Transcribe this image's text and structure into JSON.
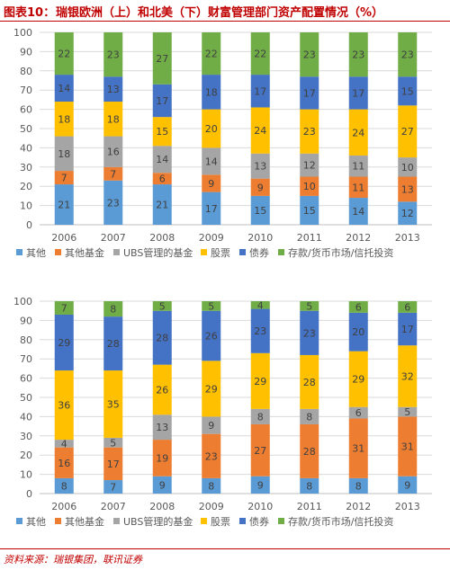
{
  "header": {
    "fig_label": "图表10：",
    "title": "瑞银欧洲（上）和北美（下）财富管理部门资产配置情况（%）"
  },
  "colors": {
    "其他": "#5b9bd5",
    "其他基金": "#ed7d31",
    "UBS管理的基金": "#a5a5a5",
    "股票": "#ffc000",
    "债券": "#4472c4",
    "存款/货币市场/信托投资": "#70ad47"
  },
  "chart_data": [
    {
      "type": "bar",
      "stacked": true,
      "categories": [
        "2006",
        "2007",
        "2008",
        "2009",
        "2010",
        "2011",
        "2012",
        "2013"
      ],
      "ylim": [
        0,
        100
      ],
      "yticks": [
        0,
        10,
        20,
        30,
        40,
        50,
        60,
        70,
        80,
        90,
        100
      ],
      "grid": true,
      "legend": "bottom",
      "series": [
        {
          "name": "其他",
          "values": [
            21,
            23,
            21,
            17,
            15,
            15,
            14,
            12
          ]
        },
        {
          "name": "其他基金",
          "values": [
            7,
            7,
            6,
            9,
            9,
            10,
            11,
            13
          ]
        },
        {
          "name": "UBS管理的基金",
          "values": [
            18,
            16,
            14,
            14,
            13,
            12,
            11,
            10
          ]
        },
        {
          "name": "股票",
          "values": [
            18,
            18,
            15,
            20,
            24,
            23,
            24,
            27
          ]
        },
        {
          "name": "债券",
          "values": [
            14,
            13,
            17,
            18,
            17,
            17,
            17,
            15
          ]
        },
        {
          "name": "存款/货币市场/信托投资",
          "values": [
            22,
            23,
            27,
            22,
            22,
            23,
            23,
            23
          ]
        }
      ]
    },
    {
      "type": "bar",
      "stacked": true,
      "categories": [
        "2006",
        "2007",
        "2008",
        "2009",
        "2010",
        "2011",
        "2012",
        "2013"
      ],
      "ylim": [
        0,
        100
      ],
      "yticks": [
        0,
        10,
        20,
        30,
        40,
        50,
        60,
        70,
        80,
        90,
        100
      ],
      "grid": true,
      "legend": "bottom",
      "series": [
        {
          "name": "其他",
          "values": [
            8,
            7,
            9,
            8,
            9,
            8,
            8,
            9
          ]
        },
        {
          "name": "其他基金",
          "values": [
            16,
            17,
            19,
            23,
            27,
            28,
            31,
            31
          ]
        },
        {
          "name": "UBS管理的基金",
          "values": [
            4,
            5,
            13,
            9,
            8,
            8,
            6,
            5
          ]
        },
        {
          "name": "股票",
          "values": [
            36,
            35,
            26,
            29,
            29,
            28,
            29,
            32
          ]
        },
        {
          "name": "债券",
          "values": [
            29,
            28,
            28,
            26,
            23,
            23,
            20,
            17
          ]
        },
        {
          "name": "存款/货币市场/信托投资",
          "values": [
            7,
            8,
            5,
            5,
            4,
            5,
            6,
            6
          ]
        }
      ]
    }
  ],
  "footer": {
    "source": "资料来源：瑞银集团，联讯证券"
  }
}
